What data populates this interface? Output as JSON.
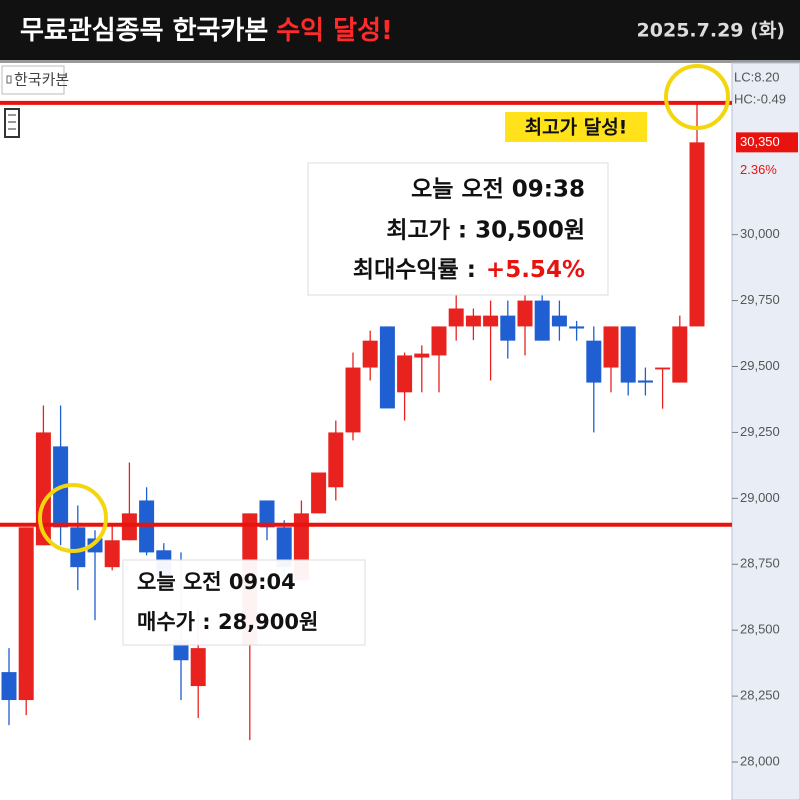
{
  "header": {
    "title": "무료관심종목 한국카본",
    "highlight": "수익 달성!",
    "date": "2025.7.29 (화)"
  },
  "chart_data": {
    "type": "candlestick",
    "stock_label": "한국카본",
    "categories": [
      null,
      null,
      null,
      null,
      null,
      null,
      null,
      null,
      null,
      null,
      null,
      null,
      null,
      null,
      null,
      null,
      null,
      null,
      null,
      null,
      null,
      null,
      null,
      null,
      null,
      null,
      null,
      null,
      null,
      null,
      null,
      null,
      null,
      null,
      null,
      null,
      null,
      null,
      null,
      null,
      null
    ],
    "open": [
      28341,
      28235,
      28822,
      29197,
      28890,
      28848,
      28739,
      28841,
      28992,
      28803,
      28462,
      28288,
      null,
      null,
      28443,
      28992,
      28890,
      28689,
      28943,
      29042,
      29250,
      29496,
      29652,
      29402,
      29534,
      29542,
      29652,
      29652,
      29652,
      29693,
      29652,
      29750,
      29693,
      29652,
      29598,
      29496,
      29652,
      29447,
      29489,
      29439,
      29652
    ],
    "high": [
      28432,
      28890,
      29352,
      29352,
      28973,
      28879,
      28898,
      29136,
      29042,
      28830,
      28795,
      28576,
      null,
      null,
      28943,
      28992,
      28917,
      28992,
      29098,
      29295,
      29553,
      29636,
      29652,
      29553,
      29580,
      29652,
      29773,
      29720,
      29750,
      29750,
      29807,
      29788,
      29750,
      29673,
      29652,
      29652,
      29652,
      29496,
      29496,
      29693,
      30500
    ],
    "low": [
      28140,
      28178,
      28822,
      28822,
      28652,
      28538,
      28727,
      28841,
      28784,
      28700,
      28235,
      28167,
      null,
      null,
      28083,
      28841,
      28670,
      28689,
      28943,
      28992,
      29220,
      29447,
      29341,
      29295,
      29402,
      29402,
      29598,
      29600,
      29447,
      29530,
      29542,
      29598,
      29598,
      29598,
      29250,
      29402,
      29390,
      29390,
      29340,
      29439,
      29652
    ],
    "close": [
      28235,
      28890,
      29250,
      28890,
      28739,
      28795,
      28841,
      28943,
      28795,
      28708,
      28386,
      28432,
      null,
      null,
      28943,
      28890,
      28739,
      28943,
      29098,
      29250,
      29496,
      29598,
      29341,
      29542,
      29549,
      29652,
      29720,
      29693,
      29693,
      29598,
      29750,
      29598,
      29652,
      29644,
      29439,
      29652,
      29439,
      29439,
      29496,
      29652,
      30350
    ],
    "up_color": "#e8231f",
    "down_color": "#1f5fd1",
    "ylim": [
      27856,
      30651
    ],
    "yticks": [
      {
        "value": 28000,
        "label": "28,000"
      },
      {
        "value": 28250,
        "label": "28,250"
      },
      {
        "value": 28500,
        "label": "28,500"
      },
      {
        "value": 28750,
        "label": "28,750"
      },
      {
        "value": 29000,
        "label": "29,000"
      },
      {
        "value": 29250,
        "label": "29,250"
      },
      {
        "value": 29500,
        "label": "29,500"
      },
      {
        "value": 29750,
        "label": "29,750"
      },
      {
        "value": 30000,
        "label": "30,000"
      }
    ],
    "reference_lines": [
      {
        "value": 30500,
        "color": "#e8130f"
      },
      {
        "value": 28900,
        "color": "#e8130f"
      }
    ],
    "indicators": [
      {
        "label": "LC:8.20",
        "color": "#e02020"
      },
      {
        "label": "HC:-0.49",
        "color": "#2050d0"
      }
    ],
    "last_price": {
      "value": 30350,
      "label": "30,350",
      "color": "#e8130f"
    },
    "change": "2.36%",
    "annotations": {
      "high_badge": "최고가 달성!",
      "high_box": {
        "lines": [
          "오늘 오전 09:38",
          "최고가 : 30,500원"
        ],
        "label": "최대수익률 :",
        "highlight": "+5.54%"
      },
      "buy_box": {
        "lines": [
          "오늘 오전 09:04",
          "매수가 : 28,900원"
        ]
      }
    }
  }
}
